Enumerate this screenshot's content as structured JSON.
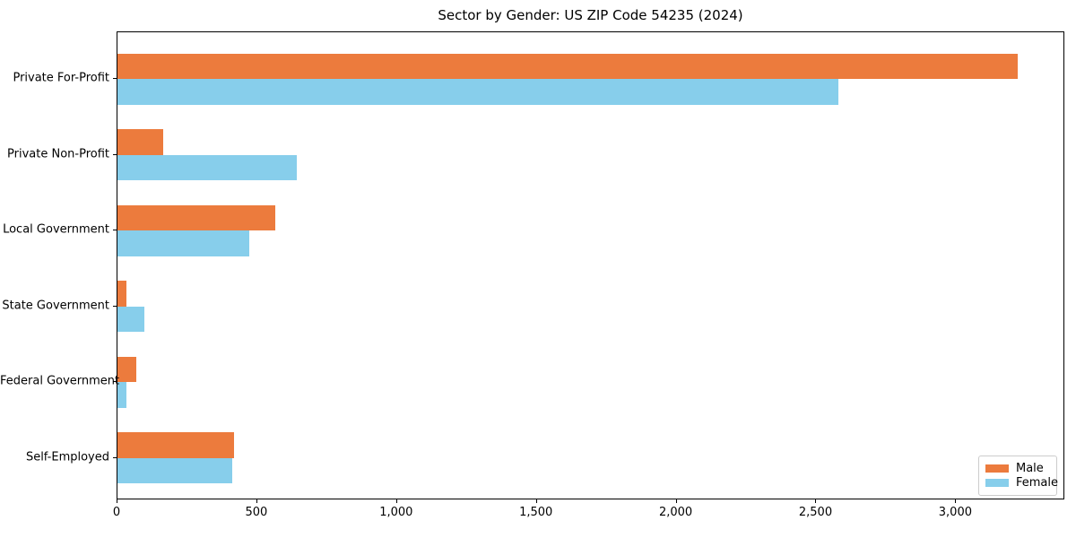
{
  "title": "Sector by Gender: US ZIP Code 54235 (2024)",
  "colors": {
    "male": "#EC7B3D",
    "female": "#87CEEB",
    "axis": "#000000",
    "legend_border": "#cccccc",
    "background": "#ffffff"
  },
  "chart_data": {
    "type": "bar",
    "orientation": "horizontal",
    "title": "Sector by Gender: US ZIP Code 54235 (2024)",
    "categories": [
      "Private For-Profit",
      "Private Non-Profit",
      "Local Government",
      "State Government",
      "Federal Government",
      "Self-Employed"
    ],
    "series": [
      {
        "name": "Male",
        "color": "#EC7B3D",
        "values": [
          3220,
          165,
          565,
          33,
          66,
          416
        ]
      },
      {
        "name": "Female",
        "color": "#87CEEB",
        "values": [
          2580,
          640,
          470,
          97,
          33,
          412
        ]
      }
    ],
    "xlabel": "",
    "ylabel": "",
    "xlim": [
      0,
      3390
    ],
    "x_ticks": [
      0,
      500,
      1000,
      1500,
      2000,
      2500,
      3000
    ],
    "x_tick_labels": [
      "0",
      "500",
      "1,000",
      "1,500",
      "2,000",
      "2,500",
      "3,000"
    ],
    "grid": false,
    "legend_position": "lower right"
  }
}
